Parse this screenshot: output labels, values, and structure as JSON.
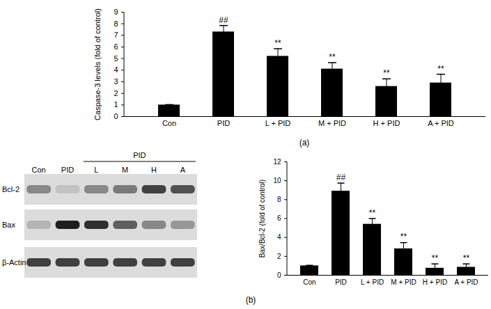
{
  "chart_data": [
    {
      "type": "bar",
      "caption": "(a)",
      "y_label": "Caspase-3 levels (fold of control)",
      "categories": [
        "Con",
        "PID",
        "L + PID",
        "M + PID",
        "H + PID",
        "A + PID"
      ],
      "values": [
        1.0,
        7.3,
        5.2,
        4.1,
        2.6,
        2.9
      ],
      "errors": [
        0.03,
        0.55,
        0.65,
        0.55,
        0.65,
        0.75
      ],
      "annotations": [
        null,
        "##",
        "**",
        "**",
        "**",
        "**"
      ],
      "color": "#000000",
      "ylim": [
        0,
        9
      ],
      "yticks": [
        0,
        1,
        2,
        3,
        4,
        5,
        6,
        7,
        8,
        9
      ]
    },
    {
      "type": "bar",
      "caption": "(b)",
      "y_label": "Bax/Bcl-2 (fold of control)",
      "categories": [
        "Con",
        "PID",
        "L + PID",
        "M + PID",
        "H + PID",
        "A + PID"
      ],
      "values": [
        1.0,
        8.9,
        5.4,
        2.8,
        0.75,
        0.85
      ],
      "errors": [
        0.05,
        0.85,
        0.6,
        0.65,
        0.45,
        0.35
      ],
      "annotations": [
        null,
        "##",
        "**",
        "**",
        "**",
        "**"
      ],
      "color": "#000000",
      "ylim": [
        0,
        12
      ],
      "yticks": [
        0,
        2,
        4,
        6,
        8,
        10,
        12
      ]
    }
  ],
  "blot": {
    "lanes": [
      "Con",
      "PID",
      "L",
      "M",
      "H",
      "A"
    ],
    "group": {
      "label": "PID",
      "from": "L",
      "to": "A"
    },
    "rows": [
      {
        "label": "Bcl-2",
        "intensity": [
          0.55,
          0.35,
          0.55,
          0.6,
          0.8,
          0.75
        ]
      },
      {
        "label": "Bax",
        "intensity": [
          0.4,
          0.9,
          0.85,
          0.7,
          0.55,
          0.5
        ]
      },
      {
        "label": "β-Actin",
        "intensity": [
          0.8,
          0.8,
          0.8,
          0.8,
          0.8,
          0.8
        ]
      }
    ]
  }
}
